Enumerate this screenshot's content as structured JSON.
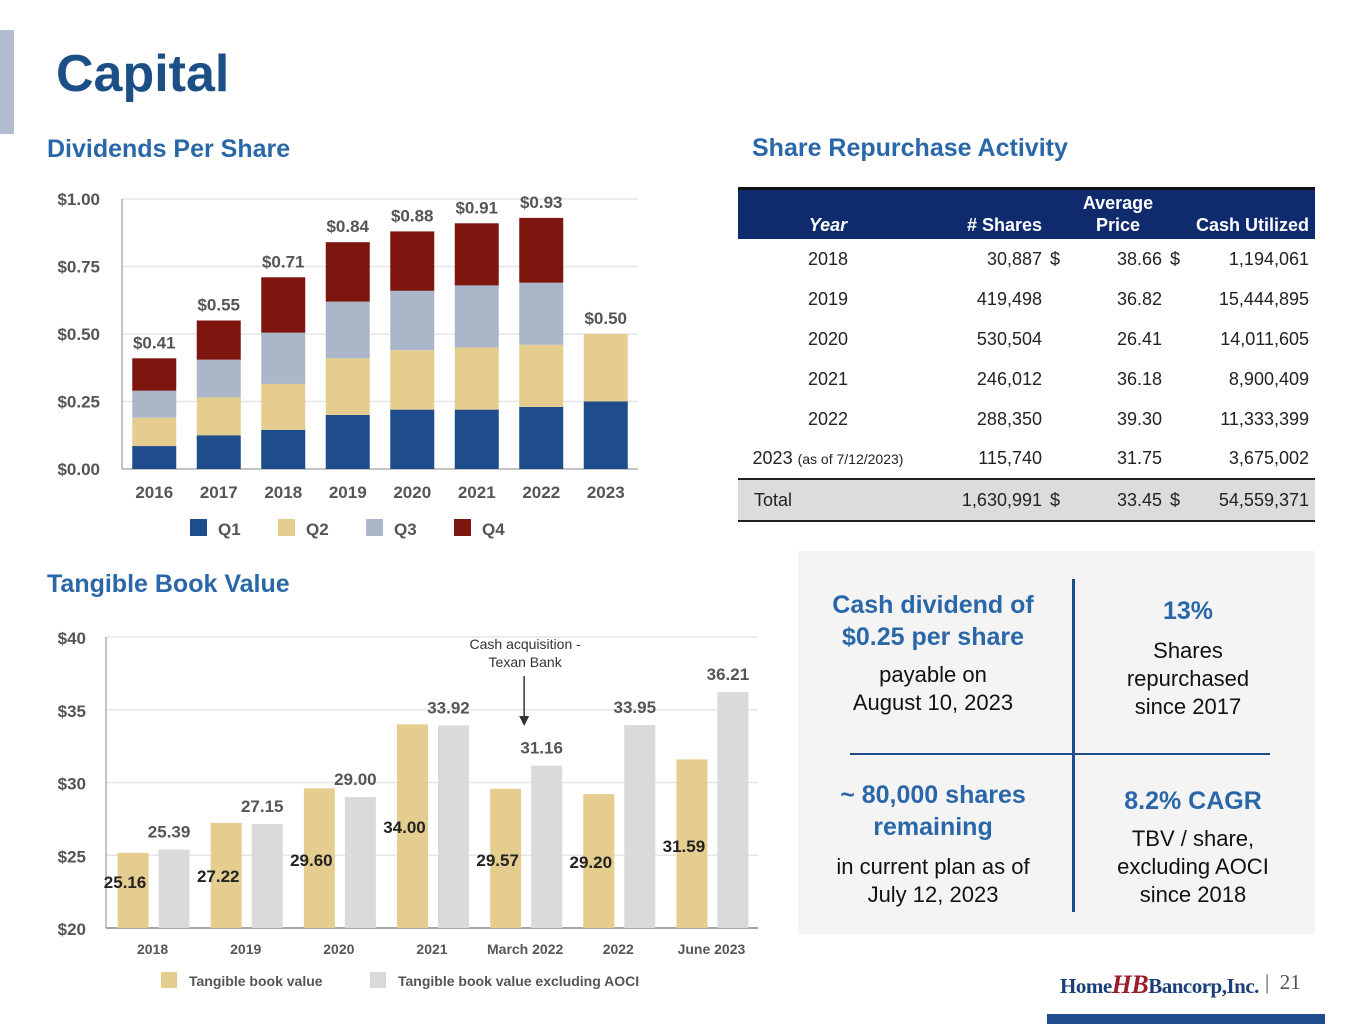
{
  "page": {
    "title": "Capital",
    "page_number": "21",
    "logo_text": {
      "left": "Home",
      "mark": "HB",
      "right": "Bancorp,Inc."
    },
    "separator": "|"
  },
  "sections": {
    "dividends": "Dividends Per Share",
    "repurchase": "Share Repurchase Activity",
    "tbv": "Tangible Book Value"
  },
  "chart_data": [
    {
      "type": "bar",
      "stacked": true,
      "title": "Dividends Per Share",
      "categories": [
        "2016",
        "2017",
        "2018",
        "2019",
        "2020",
        "2021",
        "2022",
        "2023"
      ],
      "series": [
        {
          "name": "Q1",
          "color": "#1f4c8b",
          "values": [
            0.085,
            0.125,
            0.145,
            0.2,
            0.22,
            0.22,
            0.23,
            0.25
          ]
        },
        {
          "name": "Q2",
          "color": "#e4cd8e",
          "values": [
            0.105,
            0.14,
            0.17,
            0.21,
            0.22,
            0.23,
            0.23,
            0.25
          ]
        },
        {
          "name": "Q3",
          "color": "#abb6c9",
          "values": [
            0.1,
            0.14,
            0.19,
            0.21,
            0.22,
            0.23,
            0.23,
            0
          ]
        },
        {
          "name": "Q4",
          "color": "#7d160f",
          "values": [
            0.12,
            0.145,
            0.205,
            0.22,
            0.22,
            0.23,
            0.24,
            0
          ]
        }
      ],
      "totals": [
        "$0.41",
        "$0.55",
        "$0.71",
        "$0.84",
        "$0.88",
        "$0.91",
        "$0.93",
        "$0.50"
      ],
      "yticks": [
        "$0.00",
        "$0.25",
        "$0.50",
        "$0.75",
        "$1.00"
      ],
      "ytick_values": [
        0,
        0.25,
        0.5,
        0.75,
        1.0
      ],
      "ylim": [
        0,
        1.0
      ],
      "grid": true,
      "legend_position": "bottom",
      "xlabel": "",
      "ylabel": ""
    },
    {
      "type": "bar",
      "stacked": false,
      "title": "Tangible Book Value",
      "categories": [
        "2018",
        "2019",
        "2020",
        "2021",
        "March 2022",
        "2022",
        "June 2023"
      ],
      "series": [
        {
          "name": "Tangible book value",
          "color": "#e4cd8e",
          "values": [
            25.16,
            27.22,
            29.6,
            34.0,
            29.57,
            29.2,
            31.59
          ]
        },
        {
          "name": "Tangible book value excluding AOCI",
          "color": "#dadada",
          "values": [
            25.39,
            27.15,
            29.0,
            33.92,
            31.16,
            33.95,
            36.21
          ]
        }
      ],
      "labels_tbv": [
        "25.16",
        "27.22",
        "29.60",
        "34.00",
        "29.57",
        "29.20",
        "31.59"
      ],
      "labels_ex": [
        "25.39",
        "27.15",
        "29.00",
        "33.92",
        "31.16",
        "33.95",
        "36.21"
      ],
      "yticks": [
        "$20",
        "$25",
        "$30",
        "$35",
        "$40"
      ],
      "ytick_values": [
        20,
        25,
        30,
        35,
        40
      ],
      "ylim": [
        20,
        40
      ],
      "grid": true,
      "legend_position": "bottom",
      "annotation": {
        "line1": "Cash acquisition -",
        "line2": "Texan Bank",
        "category": "March 2022"
      },
      "xlabel": "",
      "ylabel": ""
    }
  ],
  "repurchase_table": {
    "headers": {
      "year": "Year",
      "shares": "# Shares",
      "avg_price_1": "Average",
      "avg_price_2": "Price",
      "cash": "Cash Utilized"
    },
    "rows": [
      {
        "year": "2018",
        "note": "",
        "shares": "30,887",
        "cur1": "$",
        "price": "38.66",
        "cur2": "$",
        "cash": "1,194,061"
      },
      {
        "year": "2019",
        "note": "",
        "shares": "419,498",
        "cur1": "",
        "price": "36.82",
        "cur2": "",
        "cash": "15,444,895"
      },
      {
        "year": "2020",
        "note": "",
        "shares": "530,504",
        "cur1": "",
        "price": "26.41",
        "cur2": "",
        "cash": "14,011,605"
      },
      {
        "year": "2021",
        "note": "",
        "shares": "246,012",
        "cur1": "",
        "price": "36.18",
        "cur2": "",
        "cash": "8,900,409"
      },
      {
        "year": "2022",
        "note": "",
        "shares": "288,350",
        "cur1": "",
        "price": "39.30",
        "cur2": "",
        "cash": "11,333,399"
      },
      {
        "year": "2023",
        "note": "(as of 7/12/2023)",
        "shares": "115,740",
        "cur1": "",
        "price": "31.75",
        "cur2": "",
        "cash": "3,675,002"
      }
    ],
    "total": {
      "label": "Total",
      "shares": "1,630,991",
      "cur1": "$",
      "price": "33.45",
      "cur2": "$",
      "cash": "54,559,371"
    }
  },
  "callout": {
    "tl": {
      "head1": "Cash dividend of",
      "head2": "$0.25 per share",
      "body1": "payable on",
      "body2": "August 10, 2023"
    },
    "tr": {
      "head1": "13%",
      "body1": "Shares",
      "body2": "repurchased",
      "body3": "since 2017"
    },
    "bl": {
      "head1": "~ 80,000 shares",
      "head2": "remaining",
      "body1": "in current plan as of",
      "body2": "July 12, 2023"
    },
    "br": {
      "head1": "8.2% CAGR",
      "body1": "TBV / share,",
      "body2": "excluding AOCI",
      "body3": "since 2018"
    }
  }
}
